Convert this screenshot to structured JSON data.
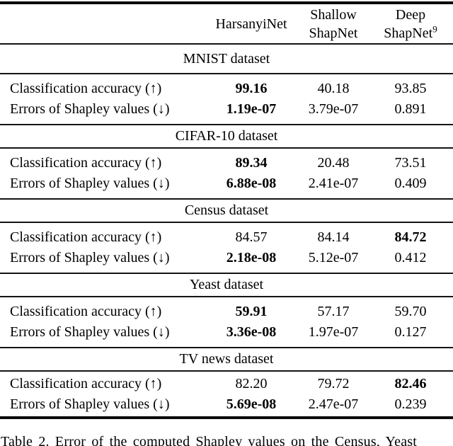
{
  "table": {
    "header": {
      "col1": "HarsanyiNet",
      "col2": {
        "line1": "Shallow",
        "line2": "ShapNet"
      },
      "col3": {
        "line1": "Deep",
        "line2": "ShapNet",
        "footnote": "9"
      }
    },
    "sections": [
      {
        "title": "MNIST dataset",
        "rows": [
          {
            "label": "Classification accuracy (↑)",
            "values": [
              {
                "text": "99.16",
                "bold": true
              },
              {
                "text": "40.18",
                "bold": false
              },
              {
                "text": "93.85",
                "bold": false
              }
            ]
          },
          {
            "label": "Errors of Shapley values (↓)",
            "values": [
              {
                "text": "1.19e-07",
                "bold": true
              },
              {
                "text": "3.79e-07",
                "bold": false
              },
              {
                "text": "0.891",
                "bold": false
              }
            ]
          }
        ]
      },
      {
        "title": "CIFAR-10 dataset",
        "rows": [
          {
            "label": "Classification accuracy (↑)",
            "values": [
              {
                "text": "89.34",
                "bold": true
              },
              {
                "text": "20.48",
                "bold": false
              },
              {
                "text": "73.51",
                "bold": false
              }
            ]
          },
          {
            "label": "Errors of Shapley values (↓)",
            "values": [
              {
                "text": "6.88e-08",
                "bold": true
              },
              {
                "text": "2.41e-07",
                "bold": false
              },
              {
                "text": "0.409",
                "bold": false
              }
            ]
          }
        ]
      },
      {
        "title": "Census dataset",
        "rows": [
          {
            "label": "Classification accuracy (↑)",
            "values": [
              {
                "text": "84.57",
                "bold": false
              },
              {
                "text": "84.14",
                "bold": false
              },
              {
                "text": "84.72",
                "bold": true
              }
            ]
          },
          {
            "label": "Errors of Shapley values (↓)",
            "values": [
              {
                "text": "2.18e-08",
                "bold": true
              },
              {
                "text": "5.12e-07",
                "bold": false
              },
              {
                "text": "0.412",
                "bold": false
              }
            ]
          }
        ]
      },
      {
        "title": "Yeast dataset",
        "rows": [
          {
            "label": "Classification accuracy (↑)",
            "values": [
              {
                "text": "59.91",
                "bold": true
              },
              {
                "text": "57.17",
                "bold": false
              },
              {
                "text": "59.70",
                "bold": false
              }
            ]
          },
          {
            "label": "Errors of Shapley values (↓)",
            "values": [
              {
                "text": "3.36e-08",
                "bold": true
              },
              {
                "text": "1.97e-07",
                "bold": false
              },
              {
                "text": "0.127",
                "bold": false
              }
            ]
          }
        ]
      },
      {
        "title": "TV news dataset",
        "rows": [
          {
            "label": "Classification accuracy (↑)",
            "values": [
              {
                "text": "82.20",
                "bold": false
              },
              {
                "text": "79.72",
                "bold": false
              },
              {
                "text": "82.46",
                "bold": true
              }
            ]
          },
          {
            "label": "Errors of Shapley values (↓)",
            "values": [
              {
                "text": "5.69e-08",
                "bold": true
              },
              {
                "text": "2.47e-07",
                "bold": false
              },
              {
                "text": "0.239",
                "bold": false
              }
            ]
          }
        ]
      }
    ]
  },
  "caption": "Table 2. Error of the computed Shapley values on the Census, Yeast"
}
